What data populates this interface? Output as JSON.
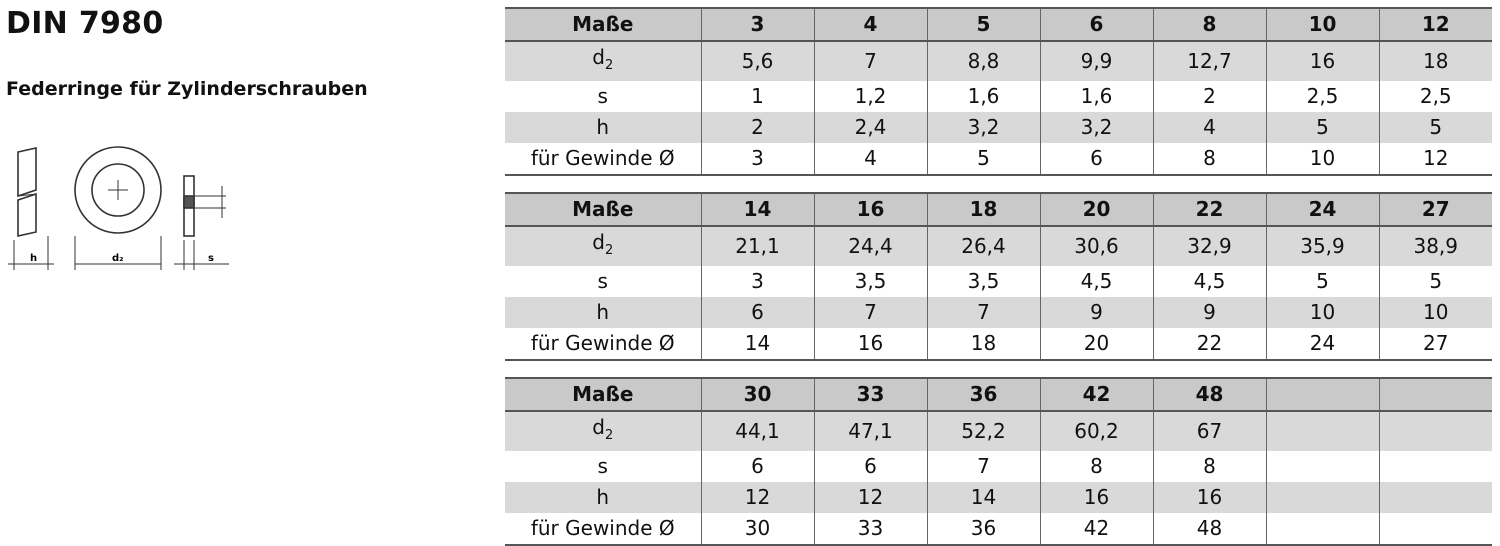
{
  "title": "DIN 7980",
  "subtitle": "Federringe für Zylinderschrauben",
  "drawing": {
    "label_h": "h",
    "label_d2": "d₂",
    "label_s": "s"
  },
  "row_labels": {
    "header": "Maße",
    "d2_base": "d",
    "d2_sub": "2",
    "s": "s",
    "h": "h",
    "gewinde": "für Gewinde Ø"
  },
  "tables": [
    {
      "sizes": [
        "3",
        "4",
        "5",
        "6",
        "8",
        "10",
        "12"
      ],
      "d2": [
        "5,6",
        "7",
        "8,8",
        "9,9",
        "12,7",
        "16",
        "18"
      ],
      "s": [
        "1",
        "1,2",
        "1,6",
        "1,6",
        "2",
        "2,5",
        "2,5"
      ],
      "h": [
        "2",
        "2,4",
        "3,2",
        "3,2",
        "4",
        "5",
        "5"
      ],
      "gewinde": [
        "3",
        "4",
        "5",
        "6",
        "8",
        "10",
        "12"
      ]
    },
    {
      "sizes": [
        "14",
        "16",
        "18",
        "20",
        "22",
        "24",
        "27"
      ],
      "d2": [
        "21,1",
        "24,4",
        "26,4",
        "30,6",
        "32,9",
        "35,9",
        "38,9"
      ],
      "s": [
        "3",
        "3,5",
        "3,5",
        "4,5",
        "4,5",
        "5",
        "5"
      ],
      "h": [
        "6",
        "7",
        "7",
        "9",
        "9",
        "10",
        "10"
      ],
      "gewinde": [
        "14",
        "16",
        "18",
        "20",
        "22",
        "24",
        "27"
      ]
    },
    {
      "sizes": [
        "30",
        "33",
        "36",
        "42",
        "48",
        "",
        ""
      ],
      "d2": [
        "44,1",
        "47,1",
        "52,2",
        "60,2",
        "67",
        "",
        ""
      ],
      "s": [
        "6",
        "6",
        "7",
        "8",
        "8",
        "",
        ""
      ],
      "h": [
        "12",
        "12",
        "14",
        "16",
        "16",
        "",
        ""
      ],
      "gewinde": [
        "30",
        "33",
        "36",
        "42",
        "48",
        "",
        ""
      ]
    }
  ]
}
